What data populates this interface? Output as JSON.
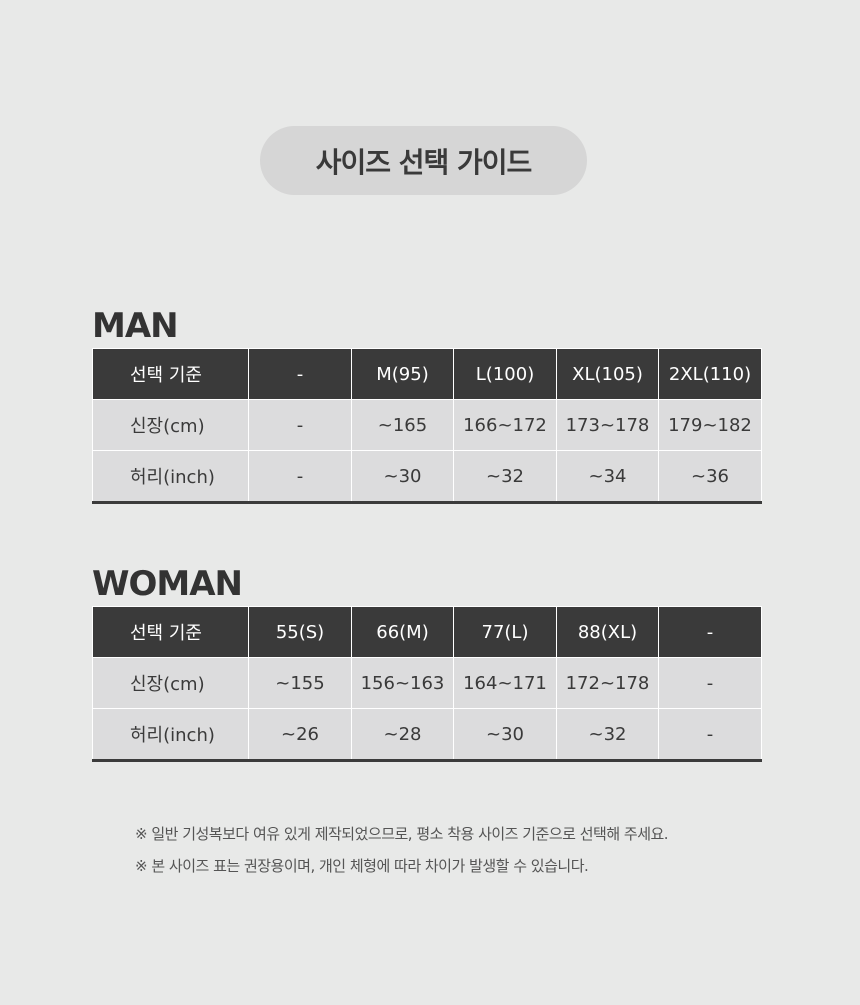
{
  "title": "사이즈 선택 가이드",
  "man": {
    "label": "MAN",
    "rows": [
      [
        "선택 기준",
        "-",
        "M(95)",
        "L(100)",
        "XL(105)",
        "2XL(110)"
      ],
      [
        "신장(cm)",
        "-",
        "~165",
        "166~172",
        "173~178",
        "179~182"
      ],
      [
        "허리(inch)",
        "-",
        "~30",
        "~32",
        "~34",
        "~36"
      ]
    ]
  },
  "woman": {
    "label": "WOMAN",
    "rows": [
      [
        "선택 기준",
        "55(S)",
        "66(M)",
        "77(L)",
        "88(XL)",
        "-"
      ],
      [
        "신장(cm)",
        "~155",
        "156~163",
        "164~171",
        "172~178",
        "-"
      ],
      [
        "허리(inch)",
        "~26",
        "~28",
        "~30",
        "~32",
        "-"
      ]
    ]
  },
  "notes": [
    "※ 일반 기성복보다 여유 있게 제작되었으므로, 평소 착용 사이즈 기준으로 선택해 주세요.",
    "※ 본 사이즈 표는 권장용이며, 개인 체형에 따라 차이가 발생할 수 있습니다."
  ]
}
